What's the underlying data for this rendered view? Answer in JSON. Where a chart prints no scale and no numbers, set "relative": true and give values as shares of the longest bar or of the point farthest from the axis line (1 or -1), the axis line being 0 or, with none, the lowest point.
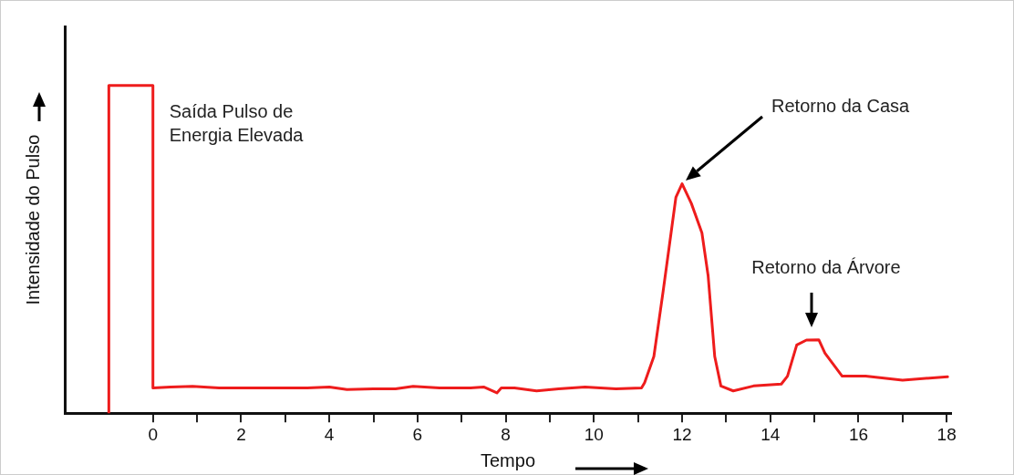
{
  "chart_data": {
    "type": "line",
    "relative": true,
    "xlabel": "Tempo",
    "ylabel": "Intensidade do Pulso",
    "x": [
      -1,
      -1,
      0,
      0,
      0.4,
      0.9,
      1.5,
      2.5,
      3.5,
      4,
      4.4,
      5,
      5.5,
      5.9,
      6.5,
      7.2,
      7.5,
      7.8,
      7.9,
      8.2,
      8.7,
      9.2,
      9.8,
      10.5,
      11.08,
      11.15,
      11.36,
      11.57,
      11.75,
      11.86,
      12,
      12.21,
      12.45,
      12.59,
      12.74,
      12.88,
      13.16,
      13.62,
      14.25,
      14.39,
      14.6,
      14.82,
      15.1,
      15.24,
      15.63,
      16.16,
      17,
      18.02
    ],
    "series": [
      {
        "color": "#ee1c1c",
        "values": [
          0,
          1,
          1,
          0.077,
          0.08,
          0.082,
          0.077,
          0.077,
          0.077,
          0.08,
          0.072,
          0.074,
          0.074,
          0.082,
          0.077,
          0.077,
          0.08,
          0.062,
          0.077,
          0.077,
          0.068,
          0.074,
          0.08,
          0.074,
          0.077,
          0.093,
          0.173,
          0.372,
          0.55,
          0.659,
          0.7,
          0.64,
          0.55,
          0.42,
          0.173,
          0.083,
          0.068,
          0.083,
          0.089,
          0.113,
          0.208,
          0.223,
          0.224,
          0.183,
          0.113,
          0.113,
          0.101,
          0.111
        ]
      }
    ],
    "xlim": [
      -2,
      18.1
    ],
    "xticks": [
      0,
      {
        "value": 1,
        "label": null
      },
      2,
      {
        "value": 3,
        "label": null
      },
      4,
      {
        "value": 5,
        "label": null
      },
      6,
      {
        "value": 7,
        "label": null
      },
      8,
      {
        "value": 9,
        "label": null
      },
      10,
      {
        "value": 11,
        "label": null
      },
      12,
      {
        "value": 13,
        "label": null
      },
      14,
      {
        "value": 15,
        "label": null
      },
      16,
      {
        "value": 17,
        "label": null
      },
      18
    ],
    "grid": false,
    "legend": false,
    "marker": "none",
    "line_style": "solid",
    "annotations": [
      "Saída Pulso de Energia Elevada",
      "Retorno da Casa",
      "Retorno da Árvore"
    ]
  }
}
